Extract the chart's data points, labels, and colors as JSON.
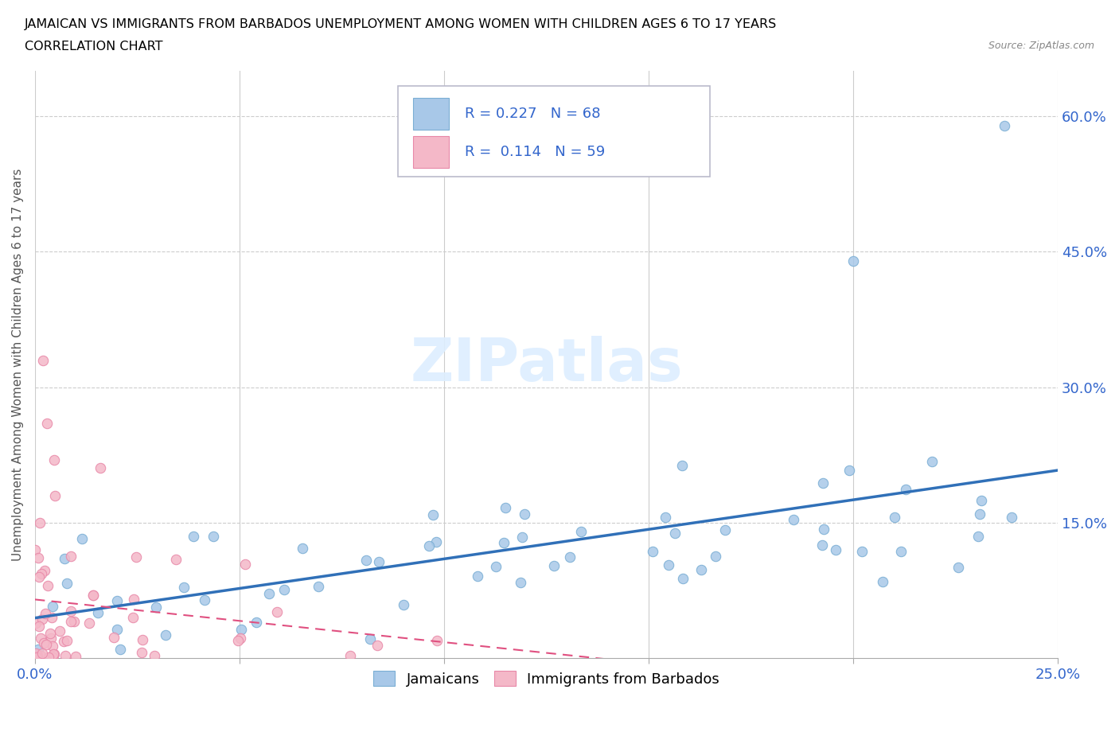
{
  "title_line1": "JAMAICAN VS IMMIGRANTS FROM BARBADOS UNEMPLOYMENT AMONG WOMEN WITH CHILDREN AGES 6 TO 17 YEARS",
  "title_line2": "CORRELATION CHART",
  "source": "Source: ZipAtlas.com",
  "ylabel": "Unemployment Among Women with Children Ages 6 to 17 years",
  "xlim": [
    0.0,
    0.25
  ],
  "ylim": [
    0.0,
    0.65
  ],
  "xticks": [
    0.0,
    0.05,
    0.1,
    0.15,
    0.2,
    0.25
  ],
  "ytick_positions": [
    0.15,
    0.3,
    0.45,
    0.6
  ],
  "ytick_labels": [
    "15.0%",
    "30.0%",
    "45.0%",
    "60.0%"
  ],
  "jamaicans_color": "#a8c8e8",
  "jamaicans_edge_color": "#7aaed4",
  "barbados_color": "#f4b8c8",
  "barbados_edge_color": "#e888a8",
  "jamaicans_line_color": "#3070b8",
  "barbados_line_color": "#e05080",
  "r_jamaicans": 0.227,
  "n_jamaicans": 68,
  "r_barbados": 0.114,
  "n_barbados": 59,
  "watermark": "ZIPatlas",
  "legend_label_jamaicans": "Jamaicans",
  "legend_label_barbados": "Immigrants from Barbados"
}
